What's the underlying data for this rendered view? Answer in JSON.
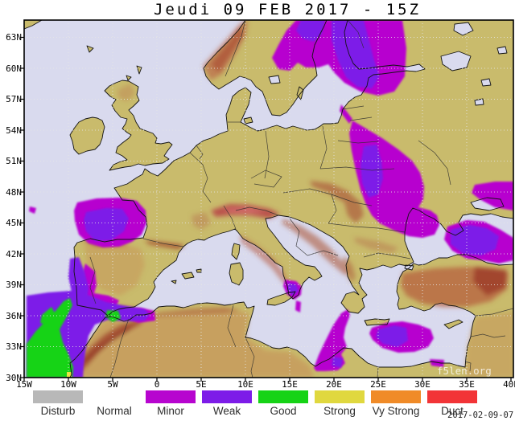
{
  "title": "Jeudi 09 FEB 2017 - 15Z",
  "timestamp": "2017-02-09-07",
  "watermark": "f5len.org",
  "map": {
    "lat_labels": [
      "63N",
      "60N",
      "57N",
      "54N",
      "51N",
      "48N",
      "45N",
      "42N",
      "39N",
      "36N",
      "33N",
      "30N"
    ],
    "lon_labels": [
      "15W",
      "10W",
      "5W",
      "0",
      "5E",
      "10E",
      "15E",
      "20E",
      "25E",
      "30E",
      "35E",
      "40E"
    ]
  },
  "legend": {
    "items": [
      {
        "label": "Disturb",
        "color": "#b8b8b8"
      },
      {
        "label": "Normal",
        "color": "none"
      },
      {
        "label": "Minor",
        "color": "#b705cf"
      },
      {
        "label": "Weak",
        "color": "#7d1ce8"
      },
      {
        "label": "Good",
        "color": "#16d316"
      },
      {
        "label": "Strong",
        "color": "#e0d83f"
      },
      {
        "label": "Vy Strong",
        "color": "#f08b28"
      },
      {
        "label": "Duct",
        "color": "#f23437"
      }
    ]
  },
  "colors": {
    "water": "#d9daee",
    "land": "#c9bb6c",
    "coastline": "#141414",
    "grid_dots": "#e6e6e6",
    "minor_overlay": "#b705cf",
    "weak_overlay": "#7d1ce8",
    "good_overlay": "#16d316"
  }
}
